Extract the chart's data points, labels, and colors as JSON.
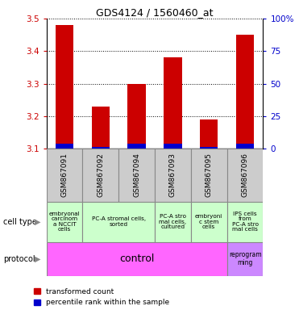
{
  "title": "GDS4124 / 1560460_at",
  "samples": [
    "GSM867091",
    "GSM867092",
    "GSM867094",
    "GSM867093",
    "GSM867095",
    "GSM867096"
  ],
  "red_values": [
    3.48,
    3.23,
    3.3,
    3.38,
    3.19,
    3.45
  ],
  "blue_values": [
    3.115,
    3.105,
    3.115,
    3.115,
    3.105,
    3.115
  ],
  "bar_base": 3.1,
  "ylim": [
    3.1,
    3.5
  ],
  "y_ticks_left": [
    3.1,
    3.2,
    3.3,
    3.4,
    3.5
  ],
  "y_ticks_right": [
    0,
    25,
    50,
    75,
    100
  ],
  "bar_color_red": "#cc0000",
  "bar_color_blue": "#0000cc",
  "left_tick_color": "#cc0000",
  "right_tick_color": "#0000cc",
  "sample_bg": "#cccccc",
  "cell_type_bg": "#99ff99",
  "cell_type_bg2": "#ccffcc",
  "protocol_ctrl_color": "#ff66ff",
  "protocol_repr_color": "#cc88ff",
  "ct_groups": [
    {
      "start": 0,
      "end": 0,
      "label": "embryonal\ncarcinom\na NCCIT\ncells"
    },
    {
      "start": 1,
      "end": 2,
      "label": "PC-A stromal cells,\nsorted"
    },
    {
      "start": 3,
      "end": 3,
      "label": "PC-A stro\nmal cells,\ncultured"
    },
    {
      "start": 4,
      "end": 4,
      "label": "embryoni\nc stem\ncells"
    },
    {
      "start": 5,
      "end": 5,
      "label": "IPS cells\nfrom\nPC-A stro\nmal cells"
    }
  ]
}
